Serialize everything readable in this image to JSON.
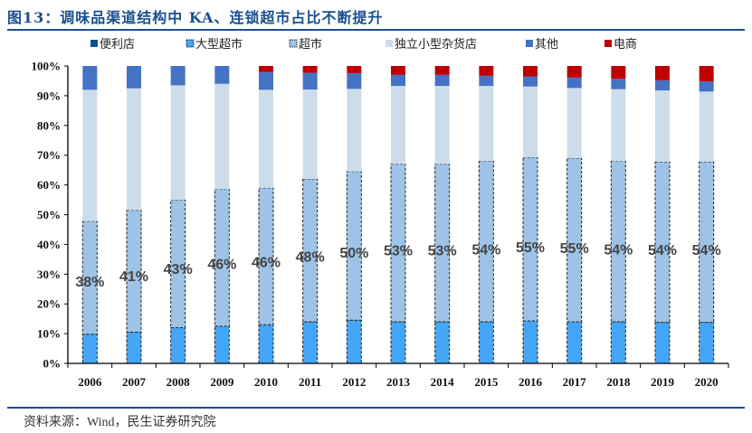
{
  "title": "图13：调味品渠道结构中 KA、连锁超市占比不断提升",
  "source": "资料来源：Wind，民生证券研究院",
  "chart_data": {
    "type": "bar",
    "stacked": true,
    "percent_stacked": true,
    "categories": [
      "2006",
      "2007",
      "2008",
      "2009",
      "2010",
      "2011",
      "2012",
      "2013",
      "2014",
      "2015",
      "2016",
      "2017",
      "2018",
      "2019",
      "2020"
    ],
    "ylim": [
      0,
      100
    ],
    "yticks": [
      "0%",
      "10%",
      "20%",
      "30%",
      "40%",
      "50%",
      "60%",
      "70%",
      "80%",
      "90%",
      "100%"
    ],
    "legend_position": "top",
    "grid": false,
    "series": [
      {
        "name": "便利店",
        "color": "#0b4f96",
        "values": [
          0,
          0,
          0,
          0,
          0,
          0,
          0,
          0,
          0,
          0,
          0,
          0,
          0,
          0,
          0
        ]
      },
      {
        "name": "大型超市",
        "color": "#45a5f7",
        "dashed_outline": true,
        "values": [
          9.8,
          10.5,
          12,
          12.5,
          13,
          14,
          14.5,
          14,
          14,
          14,
          14.3,
          14,
          14,
          13.8,
          13.8
        ]
      },
      {
        "name": "超市",
        "color": "#9dc3e6",
        "dashed_outline": true,
        "values": [
          38,
          41,
          43,
          46,
          46,
          48,
          50,
          53,
          53,
          54,
          55,
          55,
          54,
          54,
          54
        ],
        "data_labels": [
          "38%",
          "41%",
          "43%",
          "46%",
          "46%",
          "48%",
          "50%",
          "53%",
          "53%",
          "54%",
          "55%",
          "55%",
          "54%",
          "54%",
          "54%"
        ]
      },
      {
        "name": "独立小型杂货店",
        "color": "#cddcea",
        "values": [
          44.2,
          41,
          38.5,
          35.5,
          33,
          30.1,
          27.8,
          26.3,
          26.3,
          25.3,
          23.8,
          23.6,
          24.2,
          24,
          23.6
        ]
      },
      {
        "name": "其他",
        "color": "#4472c4",
        "values": [
          8,
          7.5,
          6.5,
          6,
          6,
          5.6,
          5.3,
          3.7,
          3.7,
          3.4,
          3.4,
          3.5,
          3.5,
          3.4,
          3.4
        ]
      },
      {
        "name": "电商",
        "color": "#c00000",
        "values": [
          0,
          0,
          0,
          0,
          2,
          2.3,
          2.4,
          3,
          3,
          3.3,
          3.5,
          3.9,
          4.3,
          4.8,
          5.2
        ]
      }
    ]
  }
}
